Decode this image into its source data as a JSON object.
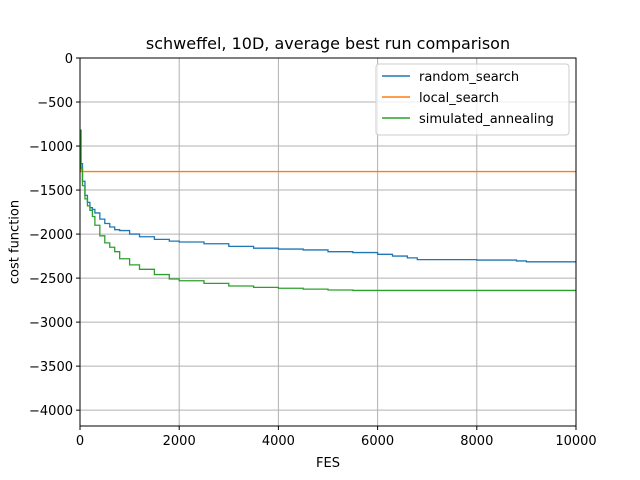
{
  "chart_data": {
    "type": "line",
    "title": "schweffel, 10D, average best run comparison",
    "xlabel": "FES",
    "ylabel": "cost function",
    "xlim": [
      0,
      10000
    ],
    "ylim": [
      -4180,
      0
    ],
    "xticks": [
      0,
      2000,
      4000,
      6000,
      8000,
      10000
    ],
    "xtick_labels": [
      "0",
      "2000",
      "4000",
      "6000",
      "8000",
      "10000"
    ],
    "yticks": [
      0,
      -500,
      -1000,
      -1500,
      -2000,
      -2500,
      -3000,
      -3500,
      -4000
    ],
    "ytick_labels": [
      "0",
      "−500",
      "−1000",
      "−1500",
      "−2000",
      "−2500",
      "−3000",
      "−3500",
      "−4000"
    ],
    "grid": true,
    "legend_position": "top-right",
    "series": [
      {
        "name": "random_search",
        "color": "#1f77b4",
        "x": [
          0,
          20,
          50,
          100,
          150,
          200,
          250,
          300,
          400,
          500,
          600,
          700,
          800,
          1000,
          1200,
          1500,
          1800,
          2000,
          2500,
          3000,
          3500,
          4000,
          4500,
          5000,
          5500,
          6000,
          6300,
          6600,
          6800,
          7500,
          8000,
          8500,
          8800,
          9000,
          9500,
          10000
        ],
        "y": [
          -820,
          -1200,
          -1400,
          -1560,
          -1640,
          -1700,
          -1720,
          -1760,
          -1830,
          -1880,
          -1920,
          -1950,
          -1960,
          -2000,
          -2030,
          -2060,
          -2080,
          -2090,
          -2110,
          -2140,
          -2160,
          -2170,
          -2180,
          -2200,
          -2210,
          -2230,
          -2250,
          -2270,
          -2290,
          -2290,
          -2295,
          -2295,
          -2305,
          -2315,
          -2315,
          -2315
        ]
      },
      {
        "name": "local_search",
        "color": "#ff7f0e",
        "x": [
          0,
          10,
          20,
          10000
        ],
        "y": [
          -1050,
          -1260,
          -1290,
          -1290
        ]
      },
      {
        "name": "simulated_annealing",
        "color": "#2ca02c",
        "x": [
          0,
          20,
          50,
          100,
          150,
          200,
          250,
          300,
          400,
          500,
          600,
          700,
          800,
          1000,
          1200,
          1500,
          1800,
          2000,
          2500,
          3000,
          3500,
          4000,
          4500,
          5000,
          5500,
          6000,
          7000,
          8000,
          9000,
          10000
        ],
        "y": [
          -820,
          -1250,
          -1450,
          -1600,
          -1680,
          -1730,
          -1800,
          -1900,
          -2020,
          -2100,
          -2150,
          -2200,
          -2280,
          -2350,
          -2400,
          -2460,
          -2510,
          -2530,
          -2560,
          -2590,
          -2605,
          -2615,
          -2625,
          -2635,
          -2640,
          -2640,
          -2640,
          -2640,
          -2640,
          -2640
        ]
      }
    ]
  }
}
